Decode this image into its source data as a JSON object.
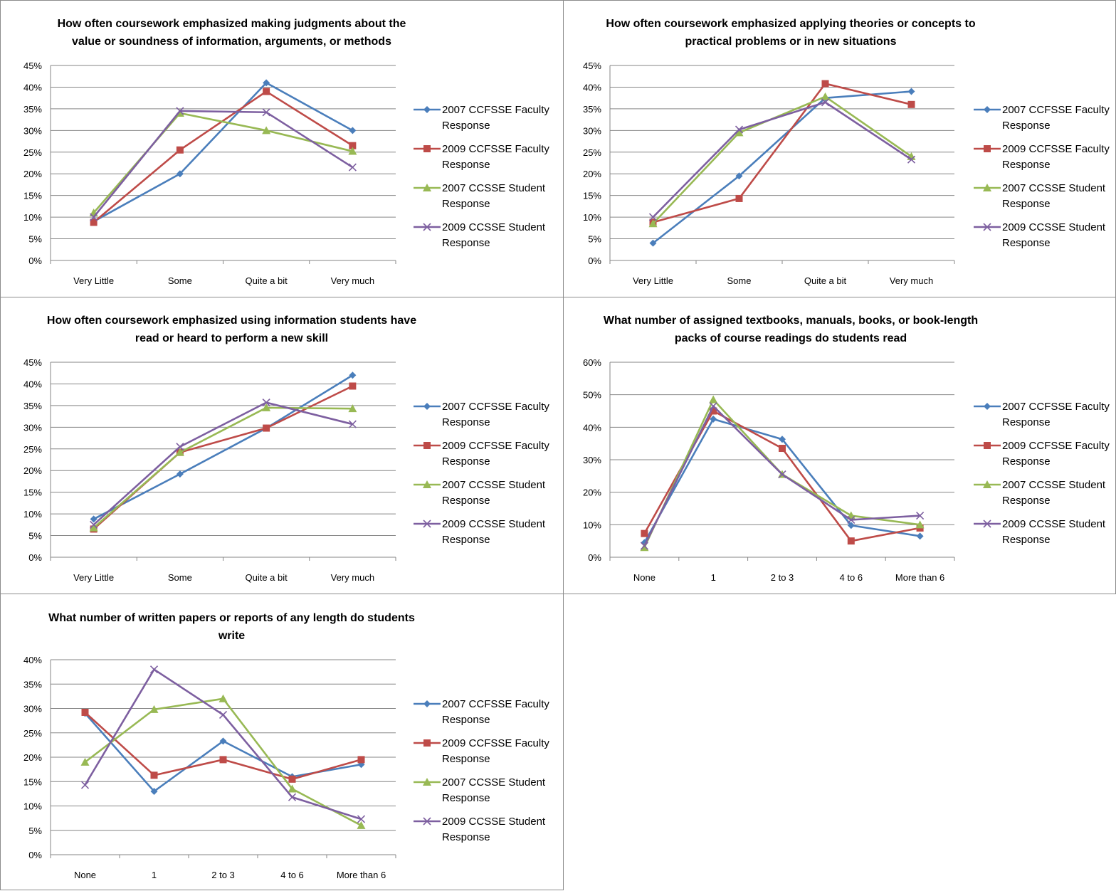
{
  "colors": {
    "2007_faculty": "#4a7ebb",
    "2009_faculty": "#be4b48",
    "2007_student": "#98b954",
    "2009_student": "#7d5fa0",
    "gridline": "#868686",
    "frame": "#8c8c8c"
  },
  "legend_labels": [
    [
      "2007 CCFSSE Faculty",
      "Response"
    ],
    [
      "2009 CCFSSE Faculty",
      "Response"
    ],
    [
      "2007 CCSSE Student",
      "Response"
    ],
    [
      "2009 CCSSE Student",
      "Response"
    ]
  ],
  "chart_data": [
    {
      "type": "line",
      "title_lines": [
        "How often coursework emphasized making judgments  about the",
        "value or soundness of information, arguments, or methods"
      ],
      "categories": [
        "Very Little",
        "Some",
        "Quite a bit",
        "Very much"
      ],
      "y_ticks": [
        "0%",
        "5%",
        "10%",
        "15%",
        "20%",
        "25%",
        "30%",
        "35%",
        "40%",
        "45%"
      ],
      "ylim": [
        0,
        45
      ],
      "legend_position": "right",
      "series": [
        {
          "name": "2007 CCFSSE Faculty Response",
          "marker": "diamond",
          "values": [
            9,
            20,
            41,
            30
          ]
        },
        {
          "name": "2009 CCFSSE Faculty Response",
          "marker": "square",
          "values": [
            8.8,
            25.5,
            39,
            26.5
          ]
        },
        {
          "name": "2007 CCSSE Student Response",
          "marker": "triangle",
          "values": [
            11,
            34,
            30,
            25.2
          ]
        },
        {
          "name": "2009 CCSSE Student Response",
          "marker": "x",
          "values": [
            10,
            34.5,
            34.2,
            21.5
          ]
        }
      ]
    },
    {
      "type": "line",
      "title_lines": [
        "How often coursework emphasized applying theories or concepts to",
        "practical problems or in new situations"
      ],
      "categories": [
        "Very Little",
        "Some",
        "Quite a bit",
        "Very much"
      ],
      "y_ticks": [
        "0%",
        "5%",
        "10%",
        "15%",
        "20%",
        "25%",
        "30%",
        "35%",
        "40%",
        "45%"
      ],
      "ylim": [
        0,
        45
      ],
      "legend_position": "right",
      "series": [
        {
          "name": "2007 CCFSSE Faculty Response",
          "marker": "diamond",
          "values": [
            4,
            19.5,
            37.5,
            39
          ]
        },
        {
          "name": "2009 CCFSSE Faculty Response",
          "marker": "square",
          "values": [
            8.8,
            14.3,
            40.8,
            36
          ]
        },
        {
          "name": "2007 CCSSE Student Response",
          "marker": "triangle",
          "values": [
            8.5,
            29.5,
            37.8,
            24
          ]
        },
        {
          "name": "2009 CCSSE Student Response",
          "marker": "x",
          "values": [
            10,
            30.2,
            36.5,
            23.3
          ]
        }
      ]
    },
    {
      "type": "line",
      "title_lines": [
        "How often coursework emphasized using information students have",
        "read or heard to perform a new skill"
      ],
      "categories": [
        "Very Little",
        "Some",
        "Quite a bit",
        "Very much"
      ],
      "y_ticks": [
        "0%",
        "5%",
        "10%",
        "15%",
        "20%",
        "25%",
        "30%",
        "35%",
        "40%",
        "45%"
      ],
      "ylim": [
        0,
        45
      ],
      "legend_position": "right",
      "series": [
        {
          "name": "2007 CCFSSE Faculty Response",
          "marker": "diamond",
          "values": [
            8.8,
            19.2,
            29.8,
            42
          ]
        },
        {
          "name": "2009 CCFSSE Faculty Response",
          "marker": "square",
          "values": [
            6.5,
            24.2,
            29.8,
            39.5
          ]
        },
        {
          "name": "2007 CCSSE Student Response",
          "marker": "triangle",
          "values": [
            6.8,
            24.2,
            34.5,
            34.3
          ]
        },
        {
          "name": "2009 CCSSE Student Response",
          "marker": "x",
          "values": [
            7.5,
            25.5,
            35.7,
            30.7
          ]
        }
      ]
    },
    {
      "type": "line",
      "title_lines": [
        "What number of assigned textbooks, manuals, books, or book-length",
        "packs of course readings do students read"
      ],
      "categories": [
        "None",
        "1",
        "2 to 3",
        "4 to 6",
        "More than 6"
      ],
      "y_ticks": [
        "0%",
        "10%",
        "20%",
        "30%",
        "40%",
        "50%",
        "60%"
      ],
      "ylim": [
        0,
        60
      ],
      "legend_position": "right",
      "series": [
        {
          "name": "2007 CCFSSE Faculty Response",
          "marker": "diamond",
          "values": [
            4.5,
            42.5,
            36.3,
            9.8,
            6.5
          ]
        },
        {
          "name": "2009 CCFSSE Faculty Response",
          "marker": "square",
          "values": [
            7.3,
            45,
            33.5,
            5,
            9
          ]
        },
        {
          "name": "2007 CCSSE Student Response",
          "marker": "triangle",
          "values": [
            3,
            48.5,
            25.5,
            12.8,
            10
          ]
        },
        {
          "name": "2009 CCSSE Student Response",
          "marker": "x",
          "values": [
            3.5,
            46.5,
            25.5,
            11.5,
            12.8
          ]
        }
      ]
    },
    {
      "type": "line",
      "title_lines": [
        "What number of written papers or reports of any length do students",
        "write"
      ],
      "categories": [
        "None",
        "1",
        "2 to 3",
        "4 to 6",
        "More than 6"
      ],
      "y_ticks": [
        "0%",
        "5%",
        "10%",
        "15%",
        "20%",
        "25%",
        "30%",
        "35%",
        "40%"
      ],
      "ylim": [
        0,
        40
      ],
      "legend_position": "right",
      "series": [
        {
          "name": "2007 CCFSSE Faculty Response",
          "marker": "diamond",
          "values": [
            29,
            13,
            23.3,
            16,
            18.5
          ]
        },
        {
          "name": "2009 CCFSSE Faculty Response",
          "marker": "square",
          "values": [
            29.2,
            16.3,
            19.5,
            15.5,
            19.5
          ]
        },
        {
          "name": "2007 CCSSE Student Response",
          "marker": "triangle",
          "values": [
            19,
            29.8,
            32,
            13.5,
            6
          ]
        },
        {
          "name": "2009 CCSSE Student Response",
          "marker": "x",
          "values": [
            14.3,
            38,
            28.7,
            11.8,
            7.3
          ]
        }
      ]
    }
  ]
}
